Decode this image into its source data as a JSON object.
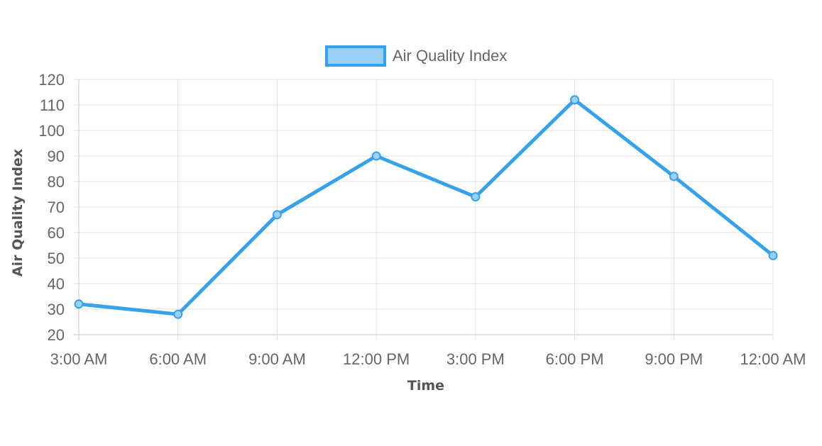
{
  "chart_data": {
    "type": "line",
    "title": "",
    "categories": [
      "3:00 AM",
      "6:00 AM",
      "9:00 AM",
      "12:00 PM",
      "3:00 PM",
      "6:00 PM",
      "9:00 PM",
      "12:00 AM"
    ],
    "series": [
      {
        "name": "Air Quality Index",
        "values": [
          32,
          28,
          67,
          90,
          74,
          112,
          82,
          51
        ],
        "color": "#36a2eb",
        "fill_color": "#9ad0f5"
      }
    ],
    "xlabel": "Time",
    "ylabel": "Air Quality Index",
    "ylim": [
      20,
      120
    ],
    "yticks": [
      20,
      30,
      40,
      50,
      60,
      70,
      80,
      90,
      100,
      110,
      120
    ],
    "grid": true,
    "legend_position": "top"
  }
}
